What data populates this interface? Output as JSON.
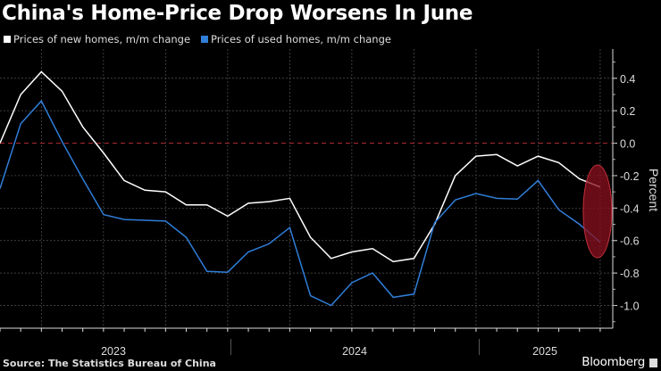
{
  "chart_data": {
    "type": "line",
    "title": "China's Home-Price Drop Worsens In June",
    "x": [
      "2023-01",
      "2023-02",
      "2023-03",
      "2023-04",
      "2023-05",
      "2023-06",
      "2023-07",
      "2023-08",
      "2023-09",
      "2023-10",
      "2023-11",
      "2023-12",
      "2024-01",
      "2024-02",
      "2024-03",
      "2024-04",
      "2024-05",
      "2024-06",
      "2024-07",
      "2024-08",
      "2024-09",
      "2024-10",
      "2024-11",
      "2024-12",
      "2025-01",
      "2025-02",
      "2025-03",
      "2025-04",
      "2025-05",
      "2025-06"
    ],
    "series": [
      {
        "name": "Prices of new homes, m/m change",
        "color": "#ffffff",
        "values": [
          0.0,
          0.3,
          0.44,
          0.32,
          0.1,
          -0.06,
          -0.23,
          -0.29,
          -0.3,
          -0.38,
          -0.38,
          -0.45,
          -0.37,
          -0.36,
          -0.34,
          -0.58,
          -0.71,
          -0.67,
          -0.65,
          -0.73,
          -0.71,
          -0.5,
          -0.2,
          -0.08,
          -0.07,
          -0.14,
          -0.08,
          -0.12,
          -0.22,
          -0.27
        ]
      },
      {
        "name": "Prices of used homes, m/m change",
        "color": "#2f7ed8",
        "values": [
          -0.28,
          0.12,
          0.26,
          0.01,
          -0.22,
          -0.44,
          -0.47,
          -0.475,
          -0.48,
          -0.58,
          -0.79,
          -0.795,
          -0.67,
          -0.62,
          -0.52,
          -0.94,
          -1.0,
          -0.86,
          -0.8,
          -0.95,
          -0.93,
          -0.49,
          -0.35,
          -0.31,
          -0.34,
          -0.345,
          -0.23,
          -0.41,
          -0.5,
          -0.61
        ]
      }
    ],
    "ylabel": "Percent",
    "ylim": [
      -1.14,
      0.58
    ],
    "yticks": [
      "0.4",
      "0.2",
      "0.0",
      "-0.2",
      "-0.4",
      "-0.6",
      "-0.8",
      "-1.0"
    ],
    "xtick_labels": [
      "2023",
      "2024",
      "2025"
    ],
    "reference_line": {
      "value": 0.0,
      "color": "#a3262e",
      "style": "dashed"
    },
    "highlight": {
      "target": "2025-06",
      "color": "#8b1020"
    },
    "grid": true,
    "legend": "top-left",
    "source": "Source: The Statistics Bureau of China",
    "brand": "Bloomberg"
  }
}
